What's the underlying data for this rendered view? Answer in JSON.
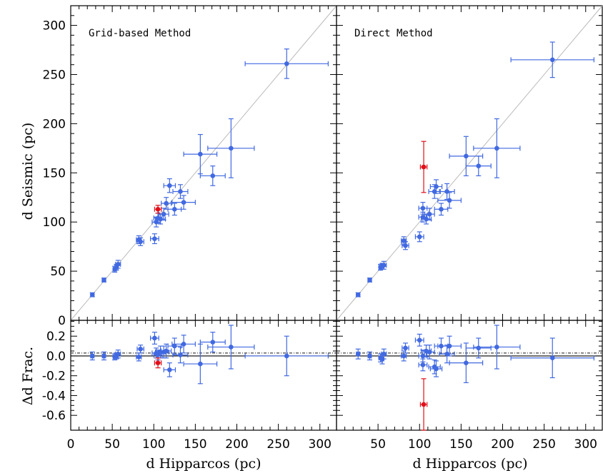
{
  "chart_data": {
    "type": "scatter",
    "xlabel": "d Hipparcos (pc)",
    "ylabel_top": "d Seismic (pc)",
    "ylabel_bottom": "Δd Frac.",
    "xlim": [
      0,
      320
    ],
    "ylim_top": [
      0,
      320
    ],
    "ylim_bottom": [
      -0.75,
      0.36
    ],
    "x_ticks": [
      0,
      50,
      100,
      150,
      200,
      250,
      300
    ],
    "y_ticks_top": [
      0,
      50,
      100,
      150,
      200,
      250,
      300
    ],
    "y_ticks_bottom": [
      "0.2",
      "0.0",
      "-0.2",
      "-0.4",
      "-0.6"
    ],
    "grid": false,
    "reference_lines": {
      "top": "one-to-one line",
      "bottom": [
        "0.0",
        "0.03"
      ]
    },
    "colors": {
      "main": "#4169e1",
      "outlier": "#e0101a",
      "line": "#bbbbbb",
      "dashed": "#555555"
    },
    "panels": [
      {
        "title": "Grid-based Method",
        "points": [
          {
            "x": 26,
            "xerr": 2,
            "y": 26,
            "yerr": 2,
            "frac": 0.0,
            "ferr": 0.04
          },
          {
            "x": 40,
            "xerr": 2,
            "y": 41,
            "yerr": 2,
            "frac": 0.0,
            "ferr": 0.04
          },
          {
            "x": 53,
            "xerr": 2,
            "y": 52,
            "yerr": 3,
            "frac": -0.01,
            "ferr": 0.03
          },
          {
            "x": 55,
            "xerr": 2,
            "y": 54,
            "yerr": 3,
            "frac": 0.0,
            "ferr": 0.03
          },
          {
            "x": 57,
            "xerr": 3,
            "y": 57,
            "yerr": 4,
            "frac": 0.02,
            "ferr": 0.04
          },
          {
            "x": 82,
            "xerr": 3,
            "y": 82,
            "yerr": 4,
            "frac": -0.01,
            "ferr": 0.04
          },
          {
            "x": 84,
            "xerr": 4,
            "y": 80,
            "yerr": 4,
            "frac": 0.07,
            "ferr": 0.04
          },
          {
            "x": 101,
            "xerr": 5,
            "y": 83,
            "yerr": 5,
            "frac": 0.18,
            "ferr": 0.06
          },
          {
            "x": 103,
            "xerr": 5,
            "y": 100,
            "yerr": 5,
            "frac": 0.03,
            "ferr": 0.05
          },
          {
            "x": 105,
            "xerr": 5,
            "y": 104,
            "yerr": 5,
            "frac": 0.01,
            "ferr": 0.05
          },
          {
            "x": 108,
            "xerr": 6,
            "y": 103,
            "yerr": 5,
            "frac": 0.04,
            "ferr": 0.06
          },
          {
            "x": 112,
            "xerr": 6,
            "y": 108,
            "yerr": 6,
            "frac": 0.04,
            "ferr": 0.06
          },
          {
            "x": 115,
            "xerr": 6,
            "y": 119,
            "yerr": 6,
            "frac": 0.05,
            "ferr": 0.07
          },
          {
            "x": 119,
            "xerr": 7,
            "y": 137,
            "yerr": 7,
            "frac": -0.14,
            "ferr": 0.07
          },
          {
            "x": 125,
            "xerr": 8,
            "y": 113,
            "yerr": 6,
            "frac": 0.1,
            "ferr": 0.08
          },
          {
            "x": 132,
            "xerr": 9,
            "y": 131,
            "yerr": 7,
            "frac": 0.01,
            "ferr": 0.08
          },
          {
            "x": 136,
            "xerr": 14,
            "y": 120,
            "yerr": 7,
            "frac": 0.12,
            "ferr": 0.09
          },
          {
            "x": 156,
            "xerr": 20,
            "y": 169,
            "yerr": 20,
            "frac": -0.08,
            "ferr": 0.2
          },
          {
            "x": 171,
            "xerr": 15,
            "y": 147,
            "yerr": 10,
            "frac": 0.14,
            "ferr": 0.1
          },
          {
            "x": 193,
            "xerr": 28,
            "y": 175,
            "yerr": 30,
            "frac": 0.09,
            "ferr": 0.22
          },
          {
            "x": 260,
            "xerr": 50,
            "y": 261,
            "yerr": 15,
            "frac": 0.0,
            "ferr": 0.2
          }
        ],
        "outliers": [
          {
            "x": 105,
            "xerr": 4,
            "y": 113,
            "yerr": 4,
            "frac": -0.07,
            "ferr": 0.05
          }
        ]
      },
      {
        "title": "Direct Method",
        "points": [
          {
            "x": 26,
            "xerr": 2,
            "y": 26,
            "yerr": 2,
            "frac": 0.02,
            "ferr": 0.05
          },
          {
            "x": 40,
            "xerr": 2,
            "y": 41,
            "yerr": 2,
            "frac": 0.0,
            "ferr": 0.04
          },
          {
            "x": 53,
            "xerr": 2,
            "y": 54,
            "yerr": 3,
            "frac": -0.02,
            "ferr": 0.04
          },
          {
            "x": 55,
            "xerr": 2,
            "y": 55,
            "yerr": 3,
            "frac": -0.03,
            "ferr": 0.05
          },
          {
            "x": 57,
            "xerr": 3,
            "y": 56,
            "yerr": 4,
            "frac": 0.02,
            "ferr": 0.05
          },
          {
            "x": 81,
            "xerr": 3,
            "y": 81,
            "yerr": 4,
            "frac": 0.0,
            "ferr": 0.05
          },
          {
            "x": 83,
            "xerr": 4,
            "y": 76,
            "yerr": 4,
            "frac": 0.08,
            "ferr": 0.05
          },
          {
            "x": 100,
            "xerr": 5,
            "y": 85,
            "yerr": 5,
            "frac": 0.16,
            "ferr": 0.06
          },
          {
            "x": 104,
            "xerr": 5,
            "y": 114,
            "yerr": 6,
            "frac": -0.09,
            "ferr": 0.06
          },
          {
            "x": 104,
            "xerr": 5,
            "y": 105,
            "yerr": 5,
            "frac": 0.0,
            "ferr": 0.06
          },
          {
            "x": 108,
            "xerr": 6,
            "y": 103,
            "yerr": 5,
            "frac": 0.05,
            "ferr": 0.06
          },
          {
            "x": 112,
            "xerr": 6,
            "y": 108,
            "yerr": 6,
            "frac": 0.04,
            "ferr": 0.07
          },
          {
            "x": 118,
            "xerr": 7,
            "y": 131,
            "yerr": 7,
            "frac": -0.11,
            "ferr": 0.07
          },
          {
            "x": 120,
            "xerr": 7,
            "y": 136,
            "yerr": 7,
            "frac": -0.13,
            "ferr": 0.08
          },
          {
            "x": 126,
            "xerr": 8,
            "y": 113,
            "yerr": 6,
            "frac": 0.1,
            "ferr": 0.08
          },
          {
            "x": 133,
            "xerr": 9,
            "y": 131,
            "yerr": 8,
            "frac": 0.02,
            "ferr": 0.09
          },
          {
            "x": 136,
            "xerr": 14,
            "y": 122,
            "yerr": 8,
            "frac": 0.1,
            "ferr": 0.1
          },
          {
            "x": 156,
            "xerr": 20,
            "y": 167,
            "yerr": 20,
            "frac": -0.07,
            "ferr": 0.2
          },
          {
            "x": 171,
            "xerr": 15,
            "y": 157,
            "yerr": 10,
            "frac": 0.08,
            "ferr": 0.1
          },
          {
            "x": 193,
            "xerr": 28,
            "y": 175,
            "yerr": 30,
            "frac": 0.09,
            "ferr": 0.22
          },
          {
            "x": 260,
            "xerr": 50,
            "y": 265,
            "yerr": 18,
            "frac": -0.02,
            "ferr": 0.2
          }
        ],
        "outliers": [
          {
            "x": 105,
            "xerr": 4,
            "y": 156,
            "yerr": 26,
            "frac": -0.49,
            "ferr": 0.26
          }
        ]
      }
    ]
  }
}
